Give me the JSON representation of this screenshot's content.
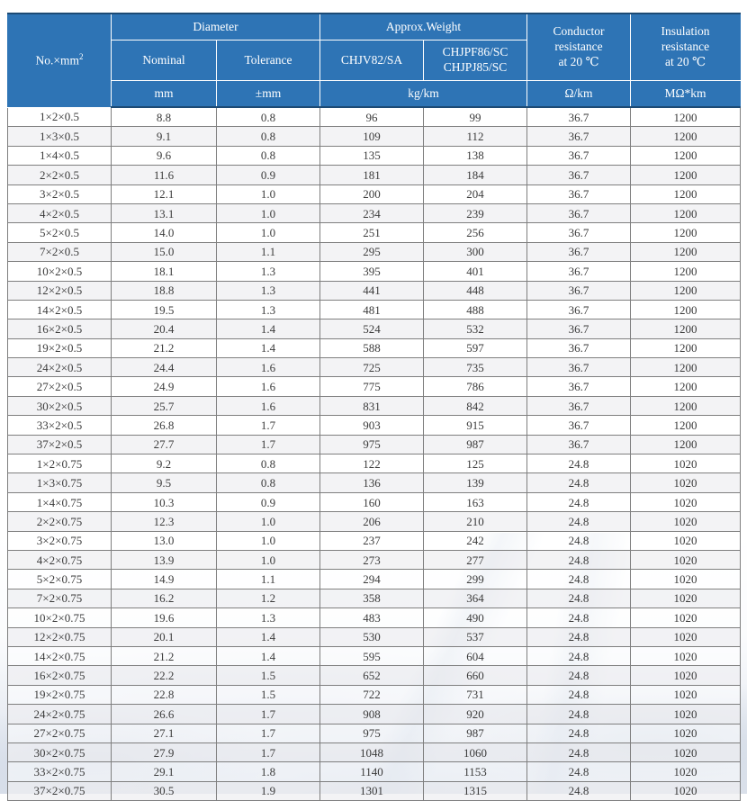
{
  "table": {
    "header": {
      "no_mm_base": "No.×mm",
      "no_mm_sup": "2",
      "diameter": "Diameter",
      "approx_weight": "Approx.Weight",
      "conductor_resistance": "Conductor\nresistance\nat 20 ℃",
      "insulation_resistance": "Insulation\nresistance\nat 20 ℃",
      "nominal": "Nominal",
      "tolerance": "Tolerance",
      "weight_type_1": "CHJV82/SA",
      "weight_type_2": "CHJPF86/SC\nCHJPJ85/SC",
      "unit_mm": "mm",
      "unit_tol_mm": "±mm",
      "unit_kg_km": "kg/km",
      "unit_ohm_km": "Ω/km",
      "unit_mohm_km": "MΩ*km"
    },
    "column_keys": [
      "no-mm2",
      "nominal-mm",
      "tolerance-mm",
      "weight-chjv82-sa",
      "weight-chjpf86-sc",
      "conductor-resistance",
      "insulation-resistance"
    ],
    "rows": [
      [
        "1×2×0.5",
        "8.8",
        "0.8",
        "96",
        "99",
        "36.7",
        "1200"
      ],
      [
        "1×3×0.5",
        "9.1",
        "0.8",
        "109",
        "112",
        "36.7",
        "1200"
      ],
      [
        "1×4×0.5",
        "9.6",
        "0.8",
        "135",
        "138",
        "36.7",
        "1200"
      ],
      [
        "2×2×0.5",
        "11.6",
        "0.9",
        "181",
        "184",
        "36.7",
        "1200"
      ],
      [
        "3×2×0.5",
        "12.1",
        "1.0",
        "200",
        "204",
        "36.7",
        "1200"
      ],
      [
        "4×2×0.5",
        "13.1",
        "1.0",
        "234",
        "239",
        "36.7",
        "1200"
      ],
      [
        "5×2×0.5",
        "14.0",
        "1.0",
        "251",
        "256",
        "36.7",
        "1200"
      ],
      [
        "7×2×0.5",
        "15.0",
        "1.1",
        "295",
        "300",
        "36.7",
        "1200"
      ],
      [
        "10×2×0.5",
        "18.1",
        "1.3",
        "395",
        "401",
        "36.7",
        "1200"
      ],
      [
        "12×2×0.5",
        "18.8",
        "1.3",
        "441",
        "448",
        "36.7",
        "1200"
      ],
      [
        "14×2×0.5",
        "19.5",
        "1.3",
        "481",
        "488",
        "36.7",
        "1200"
      ],
      [
        "16×2×0.5",
        "20.4",
        "1.4",
        "524",
        "532",
        "36.7",
        "1200"
      ],
      [
        "19×2×0.5",
        "21.2",
        "1.4",
        "588",
        "597",
        "36.7",
        "1200"
      ],
      [
        "24×2×0.5",
        "24.4",
        "1.6",
        "725",
        "735",
        "36.7",
        "1200"
      ],
      [
        "27×2×0.5",
        "24.9",
        "1.6",
        "775",
        "786",
        "36.7",
        "1200"
      ],
      [
        "30×2×0.5",
        "25.7",
        "1.6",
        "831",
        "842",
        "36.7",
        "1200"
      ],
      [
        "33×2×0.5",
        "26.8",
        "1.7",
        "903",
        "915",
        "36.7",
        "1200"
      ],
      [
        "37×2×0.5",
        "27.7",
        "1.7",
        "975",
        "987",
        "36.7",
        "1200"
      ],
      [
        "1×2×0.75",
        "9.2",
        "0.8",
        "122",
        "125",
        "24.8",
        "1020"
      ],
      [
        "1×3×0.75",
        "9.5",
        "0.8",
        "136",
        "139",
        "24.8",
        "1020"
      ],
      [
        "1×4×0.75",
        "10.3",
        "0.9",
        "160",
        "163",
        "24.8",
        "1020"
      ],
      [
        "2×2×0.75",
        "12.3",
        "1.0",
        "206",
        "210",
        "24.8",
        "1020"
      ],
      [
        "3×2×0.75",
        "13.0",
        "1.0",
        "237",
        "242",
        "24.8",
        "1020"
      ],
      [
        "4×2×0.75",
        "13.9",
        "1.0",
        "273",
        "277",
        "24.8",
        "1020"
      ],
      [
        "5×2×0.75",
        "14.9",
        "1.1",
        "294",
        "299",
        "24.8",
        "1020"
      ],
      [
        "7×2×0.75",
        "16.2",
        "1.2",
        "358",
        "364",
        "24.8",
        "1020"
      ],
      [
        "10×2×0.75",
        "19.6",
        "1.3",
        "483",
        "490",
        "24.8",
        "1020"
      ],
      [
        "12×2×0.75",
        "20.1",
        "1.4",
        "530",
        "537",
        "24.8",
        "1020"
      ],
      [
        "14×2×0.75",
        "21.2",
        "1.4",
        "595",
        "604",
        "24.8",
        "1020"
      ],
      [
        "16×2×0.75",
        "22.2",
        "1.5",
        "652",
        "660",
        "24.8",
        "1020"
      ],
      [
        "19×2×0.75",
        "22.8",
        "1.5",
        "722",
        "731",
        "24.8",
        "1020"
      ],
      [
        "24×2×0.75",
        "26.6",
        "1.7",
        "908",
        "920",
        "24.8",
        "1020"
      ],
      [
        "27×2×0.75",
        "27.1",
        "1.7",
        "975",
        "987",
        "24.8",
        "1020"
      ],
      [
        "30×2×0.75",
        "27.9",
        "1.7",
        "1048",
        "1060",
        "24.8",
        "1020"
      ],
      [
        "33×2×0.75",
        "29.1",
        "1.8",
        "1140",
        "1153",
        "24.8",
        "1020"
      ],
      [
        "37×2×0.75",
        "30.5",
        "1.9",
        "1301",
        "1315",
        "24.8",
        "1020"
      ]
    ]
  },
  "colors": {
    "header_bg": "#2e74b5",
    "header_text": "#ffffff",
    "header_border": "#ffffff",
    "outer_accent": "#1c4a74",
    "grid": "#7f7f7f",
    "row_alt": "#eeeff1",
    "data_text": "#3b3b3b"
  }
}
